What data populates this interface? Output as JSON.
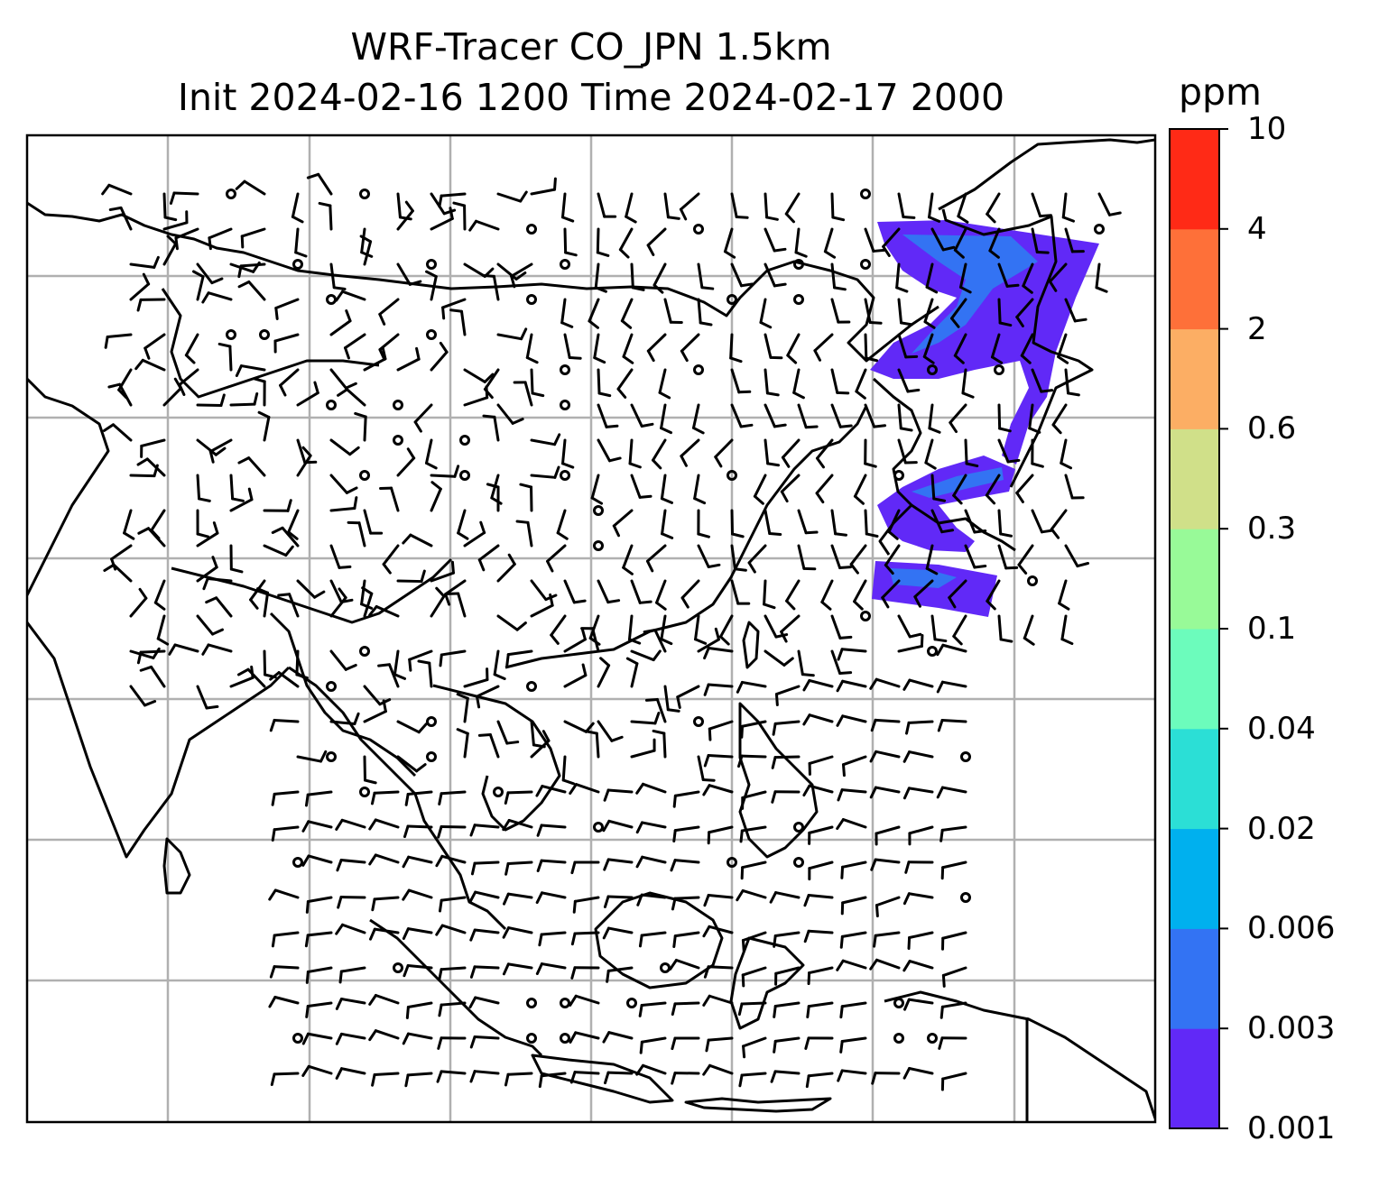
{
  "title": {
    "line1": "WRF-Tracer CO_JPN 1.5km",
    "line2": "Init 2024-02-16 1200 Time 2024-02-17 2000"
  },
  "colorbar": {
    "unit": "ppm",
    "levels": [
      "0.001",
      "0.003",
      "0.006",
      "0.02",
      "0.04",
      "0.1",
      "0.3",
      "0.6",
      "2",
      "4",
      "10"
    ],
    "colors": [
      "#6129f7",
      "#3373f3",
      "#00b0ee",
      "#2bdfd6",
      "#6cfcbc",
      "#98fa98",
      "#d0e089",
      "#fcae64",
      "#fe7039",
      "#ff2a16"
    ]
  },
  "map": {
    "gridlines": "on",
    "gridline_color": "#b0b0b0",
    "coastline_color": "#000000",
    "plume_location": "Japan region",
    "wind_barbs": "on"
  }
}
